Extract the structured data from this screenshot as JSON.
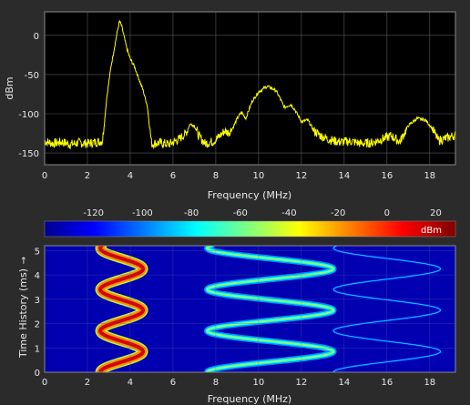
{
  "colors": {
    "figure_bg": "#2b2b2b",
    "plot_bg": "#000000",
    "trace": "#ffff00",
    "text": "#e8e8e8",
    "grid": "#5a5a5a"
  },
  "chart_data": [
    {
      "type": "line",
      "xlabel": "Frequency (MHz)",
      "ylabel": "dBm",
      "xlim": [
        0,
        19.2
      ],
      "ylim": [
        -165,
        30
      ],
      "xticks": [
        0,
        2,
        4,
        6,
        8,
        10,
        12,
        14,
        16,
        18
      ],
      "yticks": [
        0,
        -50,
        -100,
        -150
      ],
      "grid": true,
      "series": [
        {
          "points": [
            [
              0,
              -135
            ],
            [
              0.4,
              -138
            ],
            [
              0.8,
              -136
            ],
            [
              1.2,
              -139
            ],
            [
              1.6,
              -137
            ],
            [
              2.0,
              -138
            ],
            [
              2.4,
              -136
            ],
            [
              2.7,
              -135
            ],
            [
              2.8,
              -110
            ],
            [
              2.9,
              -80
            ],
            [
              3.0,
              -60
            ],
            [
              3.1,
              -40
            ],
            [
              3.2,
              -25
            ],
            [
              3.3,
              -10
            ],
            [
              3.4,
              5
            ],
            [
              3.5,
              18
            ],
            [
              3.6,
              12
            ],
            [
              3.7,
              0
            ],
            [
              3.8,
              -12
            ],
            [
              3.9,
              -22
            ],
            [
              4.0,
              -30
            ],
            [
              4.2,
              -40
            ],
            [
              4.4,
              -55
            ],
            [
              4.6,
              -70
            ],
            [
              4.8,
              -90
            ],
            [
              4.9,
              -115
            ],
            [
              5.0,
              -138
            ],
            [
              5.4,
              -137
            ],
            [
              5.8,
              -139
            ],
            [
              6.1,
              -135
            ],
            [
              6.3,
              -132
            ],
            [
              6.6,
              -125
            ],
            [
              6.8,
              -113
            ],
            [
              7.0,
              -115
            ],
            [
              7.2,
              -128
            ],
            [
              7.5,
              -138
            ],
            [
              7.9,
              -135
            ],
            [
              8.2,
              -128
            ],
            [
              8.4,
              -122
            ],
            [
              8.6,
              -124
            ],
            [
              8.8,
              -118
            ],
            [
              9.0,
              -106
            ],
            [
              9.2,
              -98
            ],
            [
              9.4,
              -106
            ],
            [
              9.7,
              -84
            ],
            [
              10.0,
              -72
            ],
            [
              10.4,
              -65
            ],
            [
              10.8,
              -70
            ],
            [
              11.0,
              -80
            ],
            [
              11.2,
              -92
            ],
            [
              11.5,
              -88
            ],
            [
              11.7,
              -95
            ],
            [
              12.0,
              -110
            ],
            [
              12.3,
              -108
            ],
            [
              12.6,
              -122
            ],
            [
              12.9,
              -128
            ],
            [
              13.3,
              -133
            ],
            [
              13.8,
              -136
            ],
            [
              14.3,
              -135
            ],
            [
              14.8,
              -138
            ],
            [
              15.3,
              -137
            ],
            [
              15.8,
              -132
            ],
            [
              16.2,
              -128
            ],
            [
              16.6,
              -136
            ],
            [
              17.0,
              -115
            ],
            [
              17.4,
              -106
            ],
            [
              17.8,
              -108
            ],
            [
              18.1,
              -118
            ],
            [
              18.4,
              -134
            ],
            [
              18.8,
              -131
            ],
            [
              19.2,
              -127
            ]
          ]
        }
      ]
    },
    {
      "type": "heatmap",
      "xlabel": "Frequency (MHz)",
      "ylabel": "Time History (ms)",
      "ylabel_arrow": "→",
      "xlim": [
        0,
        19.2
      ],
      "ylim": [
        0,
        5.2
      ],
      "xticks": [
        0,
        2,
        4,
        6,
        8,
        10,
        12,
        14,
        16,
        18
      ],
      "yticks": [
        0,
        1,
        2,
        3,
        4,
        5
      ],
      "colorbar": {
        "ticks": [
          -120,
          -100,
          -80,
          -60,
          -40,
          -20,
          0,
          20
        ],
        "range": [
          -140,
          28
        ],
        "unit": "dBm"
      },
      "traces": [
        {
          "f0": 2.6,
          "f1": 4.6,
          "period": 1.7,
          "phase": 0.0,
          "level": 15
        },
        {
          "f0": 7.6,
          "f1": 13.5,
          "period": 1.7,
          "phase": 0.0,
          "level": -50
        },
        {
          "f0": 13.5,
          "f1": 18.5,
          "period": 1.7,
          "phase": 0.0,
          "level": -80
        }
      ]
    }
  ]
}
